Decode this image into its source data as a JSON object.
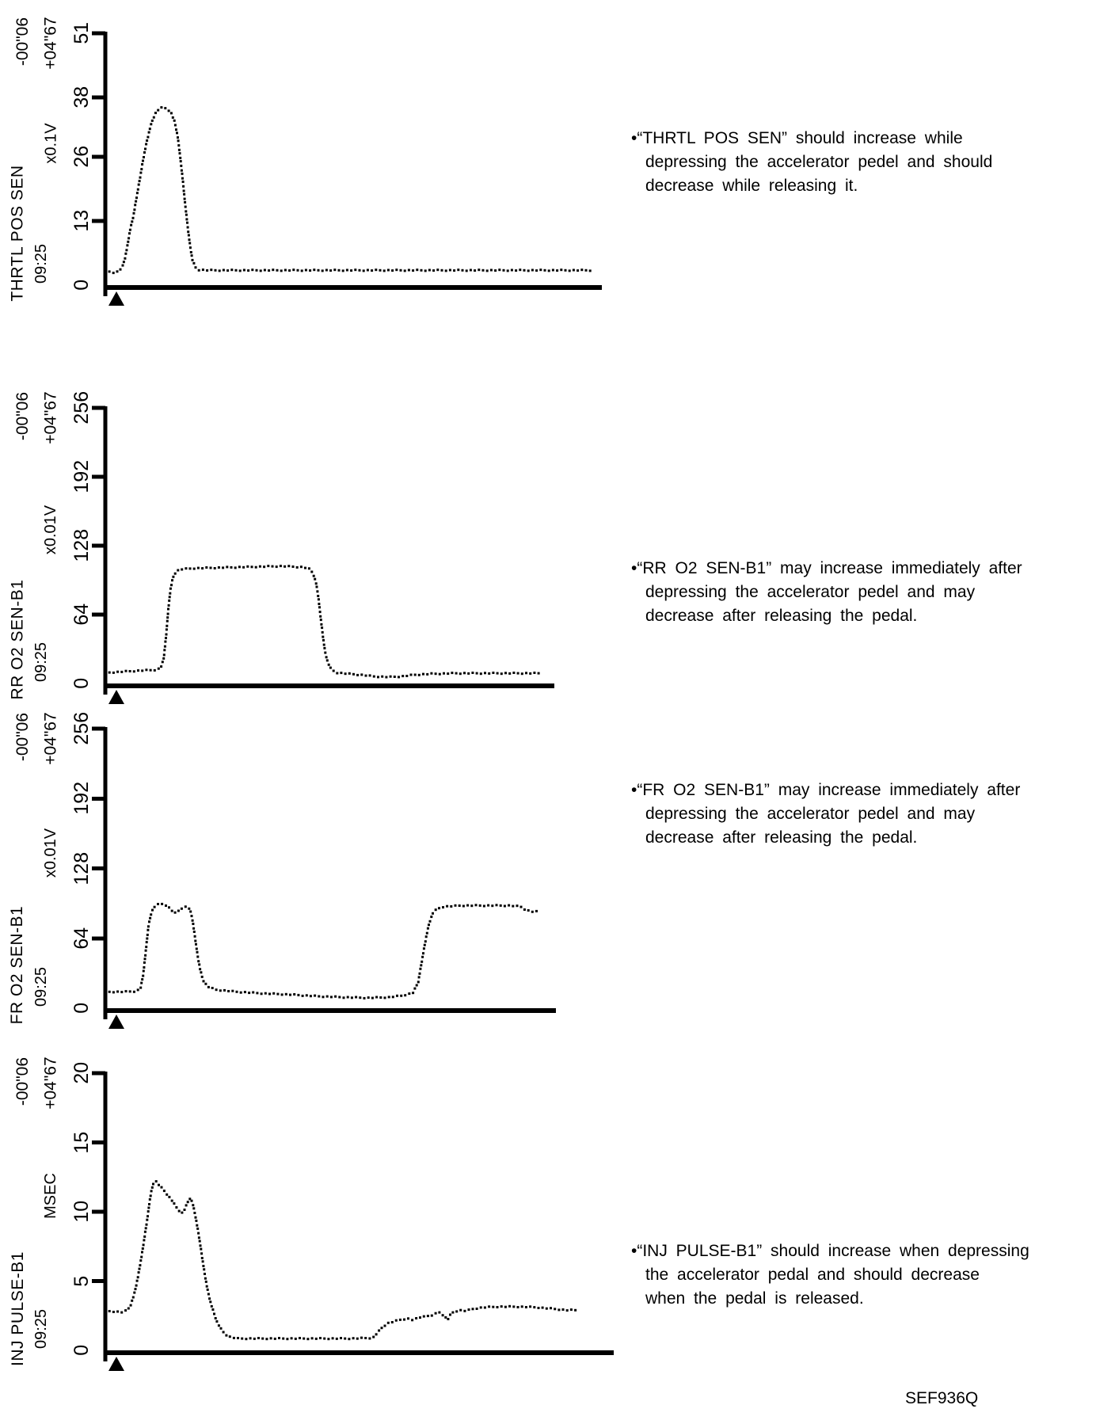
{
  "figure_code": "SEF936Q",
  "chart_data": [
    {
      "type": "scatter",
      "title": "THRTL POS SEN",
      "unit": "x0.1V",
      "time_label": "09:25",
      "time_start": "-00\"06",
      "time_end": "+04\"67",
      "ymax": 51,
      "ylim": [
        0,
        51
      ],
      "yticks": [
        0,
        13,
        26,
        38,
        51
      ],
      "trigger_marker": true,
      "x": "normalized sweep time 0-1",
      "points": [
        [
          0,
          2.9
        ],
        [
          0.01,
          2.7
        ],
        [
          0.02,
          2.5
        ],
        [
          0.028,
          2.9
        ],
        [
          0.035,
          3.8
        ],
        [
          0.04,
          5.5
        ],
        [
          0.045,
          8
        ],
        [
          0.05,
          11
        ],
        [
          0.057,
          14
        ],
        [
          0.063,
          17.5
        ],
        [
          0.07,
          21.5
        ],
        [
          0.077,
          25.5
        ],
        [
          0.084,
          29
        ],
        [
          0.09,
          31.5
        ],
        [
          0.096,
          33.5
        ],
        [
          0.103,
          35
        ],
        [
          0.11,
          35.8
        ],
        [
          0.118,
          36
        ],
        [
          0.127,
          35.6
        ],
        [
          0.134,
          34.8
        ],
        [
          0.141,
          33
        ],
        [
          0.147,
          30
        ],
        [
          0.152,
          26
        ],
        [
          0.157,
          21.5
        ],
        [
          0.162,
          16.5
        ],
        [
          0.167,
          12
        ],
        [
          0.172,
          8
        ],
        [
          0.177,
          5
        ],
        [
          0.183,
          3.6
        ],
        [
          0.19,
          3.1
        ],
        [
          0.21,
          3
        ],
        [
          0.4,
          3
        ],
        [
          0.7,
          3
        ],
        [
          0.992,
          3
        ]
      ],
      "annotation": {
        "lines": [
          "•“THRTL POS SEN” should increase while",
          "depressing the accelerator pedel and should",
          "decrease while releasing it."
        ]
      }
    },
    {
      "type": "scatter",
      "title": "RR O2 SEN-B1",
      "unit": "x0.01V",
      "time_label": "09:25",
      "time_start": "-00\"06",
      "time_end": "+04\"67",
      "ymax": 256,
      "ylim": [
        0,
        256
      ],
      "yticks": [
        0,
        64,
        128,
        192,
        256
      ],
      "trigger_marker": true,
      "x": "normalized sweep time 0-1",
      "points": [
        [
          0,
          10
        ],
        [
          0.04,
          11
        ],
        [
          0.08,
          12
        ],
        [
          0.11,
          12.5
        ],
        [
          0.125,
          14
        ],
        [
          0.132,
          22
        ],
        [
          0.138,
          45
        ],
        [
          0.143,
          70
        ],
        [
          0.148,
          88
        ],
        [
          0.153,
          98
        ],
        [
          0.16,
          104
        ],
        [
          0.17,
          106
        ],
        [
          0.2,
          107
        ],
        [
          0.3,
          108
        ],
        [
          0.4,
          109
        ],
        [
          0.45,
          108
        ],
        [
          0.465,
          106
        ],
        [
          0.472,
          101
        ],
        [
          0.478,
          93
        ],
        [
          0.483,
          80
        ],
        [
          0.488,
          62
        ],
        [
          0.493,
          45
        ],
        [
          0.498,
          30
        ],
        [
          0.504,
          20
        ],
        [
          0.512,
          13
        ],
        [
          0.525,
          10
        ],
        [
          0.55,
          9
        ],
        [
          0.58,
          8
        ],
        [
          0.61,
          6.5
        ],
        [
          0.645,
          6
        ],
        [
          0.67,
          6.5
        ],
        [
          0.7,
          8
        ],
        [
          0.74,
          9
        ],
        [
          0.8,
          9.5
        ],
        [
          0.9,
          9.5
        ],
        [
          0.99,
          9.5
        ]
      ],
      "annotation": {
        "lines": [
          "•“RR O2 SEN-B1” may increase immediately after",
          "depressing the accelerator pedel and may",
          "decrease after releasing the pedal."
        ]
      }
    },
    {
      "type": "scatter",
      "title": "FR O2 SEN-B1",
      "unit": "x0.01V",
      "time_label": "09:25",
      "time_start": "-00\"06",
      "time_end": "+04\"67",
      "ymax": 256,
      "ylim": [
        0,
        256
      ],
      "yticks": [
        0,
        64,
        128,
        192,
        256
      ],
      "trigger_marker": true,
      "x": "normalized sweep time 0-1",
      "points": [
        [
          0,
          15
        ],
        [
          0.04,
          15
        ],
        [
          0.07,
          15.5
        ],
        [
          0.08,
          18
        ],
        [
          0.086,
          30
        ],
        [
          0.092,
          52
        ],
        [
          0.098,
          75
        ],
        [
          0.105,
          88
        ],
        [
          0.112,
          93
        ],
        [
          0.12,
          95
        ],
        [
          0.13,
          95.5
        ],
        [
          0.14,
          94
        ],
        [
          0.15,
          90
        ],
        [
          0.158,
          87
        ],
        [
          0.166,
          89
        ],
        [
          0.175,
          92
        ],
        [
          0.185,
          93
        ],
        [
          0.192,
          91
        ],
        [
          0.198,
          82
        ],
        [
          0.204,
          65
        ],
        [
          0.21,
          48
        ],
        [
          0.216,
          35
        ],
        [
          0.222,
          26
        ],
        [
          0.232,
          20
        ],
        [
          0.25,
          17
        ],
        [
          0.3,
          15
        ],
        [
          0.36,
          13.5
        ],
        [
          0.42,
          12.5
        ],
        [
          0.48,
          11
        ],
        [
          0.54,
          10
        ],
        [
          0.6,
          9.5
        ],
        [
          0.645,
          10
        ],
        [
          0.675,
          11.5
        ],
        [
          0.7,
          14
        ],
        [
          0.712,
          24
        ],
        [
          0.718,
          38
        ],
        [
          0.724,
          52
        ],
        [
          0.73,
          65
        ],
        [
          0.737,
          78
        ],
        [
          0.745,
          87
        ],
        [
          0.755,
          91
        ],
        [
          0.77,
          93
        ],
        [
          0.81,
          94
        ],
        [
          0.86,
          94
        ],
        [
          0.92,
          94
        ],
        [
          0.945,
          93
        ],
        [
          0.957,
          90
        ],
        [
          0.97,
          88.5
        ],
        [
          0.99,
          88.5
        ]
      ],
      "annotation": {
        "lines": [
          "•“FR O2 SEN-B1” may increase immediately after",
          "depressing the accelerator pedel and may",
          "decrease after releasing the pedal."
        ]
      }
    },
    {
      "type": "scatter",
      "title": "INJ PULSE-B1",
      "unit": "MSEC",
      "time_label": "09:25",
      "time_start": "-00\"06",
      "time_end": "+04\"67",
      "ymax": 20,
      "ylim": [
        0,
        20
      ],
      "yticks": [
        0,
        5,
        10,
        15,
        20
      ],
      "trigger_marker": true,
      "x": "normalized sweep time 0-1",
      "points": [
        [
          0,
          2.85
        ],
        [
          0.02,
          2.8
        ],
        [
          0.035,
          2.75
        ],
        [
          0.045,
          2.9
        ],
        [
          0.052,
          3.3
        ],
        [
          0.06,
          4.2
        ],
        [
          0.067,
          5.4
        ],
        [
          0.074,
          6.8
        ],
        [
          0.08,
          8.2
        ],
        [
          0.086,
          9.6
        ],
        [
          0.09,
          10.7
        ],
        [
          0.094,
          11.5
        ],
        [
          0.098,
          12.1
        ],
        [
          0.103,
          12.2
        ],
        [
          0.11,
          11.9
        ],
        [
          0.118,
          11.6
        ],
        [
          0.127,
          11.2
        ],
        [
          0.136,
          10.8
        ],
        [
          0.143,
          10.4
        ],
        [
          0.15,
          10.1
        ],
        [
          0.156,
          9.9
        ],
        [
          0.162,
          10.2
        ],
        [
          0.168,
          10.7
        ],
        [
          0.173,
          11
        ],
        [
          0.178,
          10.6
        ],
        [
          0.184,
          9.6
        ],
        [
          0.19,
          8.4
        ],
        [
          0.196,
          7
        ],
        [
          0.202,
          5.6
        ],
        [
          0.208,
          4.4
        ],
        [
          0.214,
          3.5
        ],
        [
          0.221,
          2.7
        ],
        [
          0.228,
          2
        ],
        [
          0.238,
          1.4
        ],
        [
          0.25,
          1
        ],
        [
          0.27,
          0.85
        ],
        [
          0.4,
          0.85
        ],
        [
          0.5,
          0.85
        ],
        [
          0.545,
          0.9
        ],
        [
          0.555,
          1.3
        ],
        [
          0.565,
          1.7
        ],
        [
          0.575,
          1.95
        ],
        [
          0.59,
          2.1
        ],
        [
          0.6,
          2.2
        ],
        [
          0.615,
          2.3
        ],
        [
          0.625,
          2.2
        ],
        [
          0.64,
          2.35
        ],
        [
          0.65,
          2.5
        ],
        [
          0.66,
          2.45
        ],
        [
          0.67,
          2.6
        ],
        [
          0.68,
          2.75
        ],
        [
          0.69,
          2.5
        ],
        [
          0.697,
          2.2
        ],
        [
          0.705,
          2.7
        ],
        [
          0.72,
          2.9
        ],
        [
          0.735,
          2.85
        ],
        [
          0.75,
          3
        ],
        [
          0.77,
          3.1
        ],
        [
          0.8,
          3.15
        ],
        [
          0.84,
          3.15
        ],
        [
          0.88,
          3.1
        ],
        [
          0.91,
          3
        ],
        [
          0.94,
          2.9
        ],
        [
          0.965,
          2.9
        ]
      ],
      "annotation": {
        "lines": [
          "•“INJ PULSE-B1” should increase when depressing",
          "the accelerator pedal and should decrease",
          "when the pedal is released."
        ]
      }
    }
  ]
}
